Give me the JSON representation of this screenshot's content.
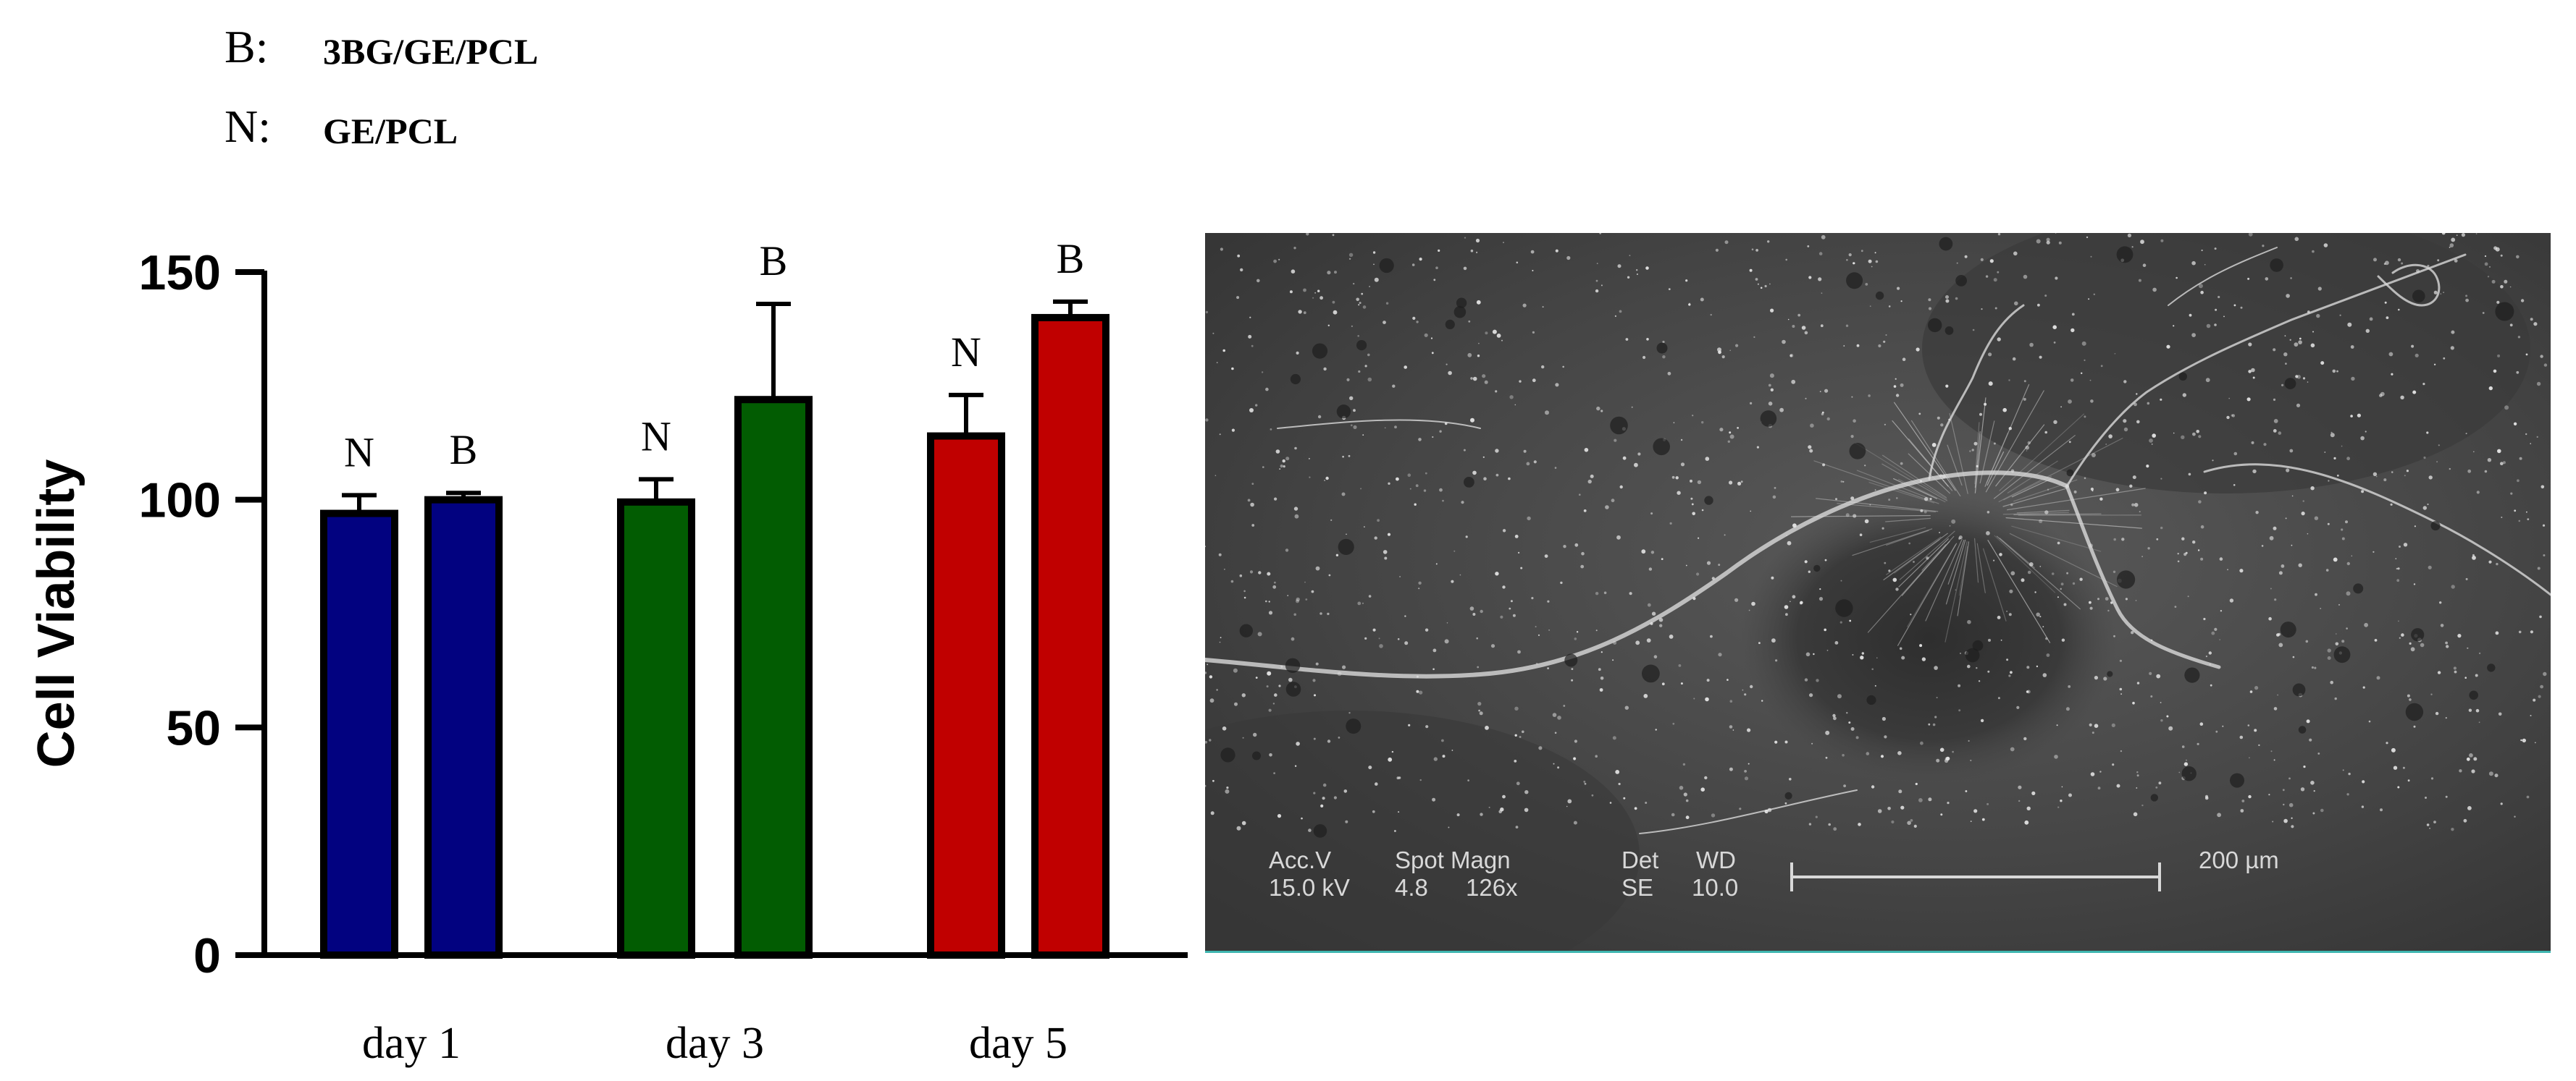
{
  "legend": {
    "items": [
      {
        "key": "B:",
        "desc": "3BG/GE/PCL"
      },
      {
        "key": "N:",
        "desc": "GE/PCL"
      }
    ]
  },
  "chart_data": {
    "type": "bar",
    "ylabel": "Cell Viability",
    "xlabel": "",
    "ylim": [
      0,
      150
    ],
    "yticks": [
      0,
      50,
      100,
      150
    ],
    "categories": [
      "day 1",
      "day 3",
      "day 5"
    ],
    "bars": [
      {
        "category": "day 1",
        "group": "N",
        "value": 97,
        "error": 4,
        "color": "#020280",
        "label": "N"
      },
      {
        "category": "day 1",
        "group": "B",
        "value": 100,
        "error": 1.5,
        "color": "#020280",
        "label": "B"
      },
      {
        "category": "day 3",
        "group": "N",
        "value": 99.5,
        "error": 5,
        "color": "#025c02",
        "label": "N"
      },
      {
        "category": "day 3",
        "group": "B",
        "value": 122,
        "error": 21,
        "color": "#025c02",
        "label": "B"
      },
      {
        "category": "day 5",
        "group": "N",
        "value": 114,
        "error": 9,
        "color": "#c00000",
        "label": "N"
      },
      {
        "category": "day 5",
        "group": "B",
        "value": 140,
        "error": 3.5,
        "color": "#c00000",
        "label": "B"
      }
    ],
    "grid": false
  },
  "sem_image": {
    "labels_row1": [
      "Acc.V",
      "Spot Magn",
      "Det",
      "WD"
    ],
    "labels_row2": [
      "15.0 kV",
      "4.8",
      "126x",
      "SE",
      "10.0"
    ],
    "scale_text": "200 µm"
  }
}
